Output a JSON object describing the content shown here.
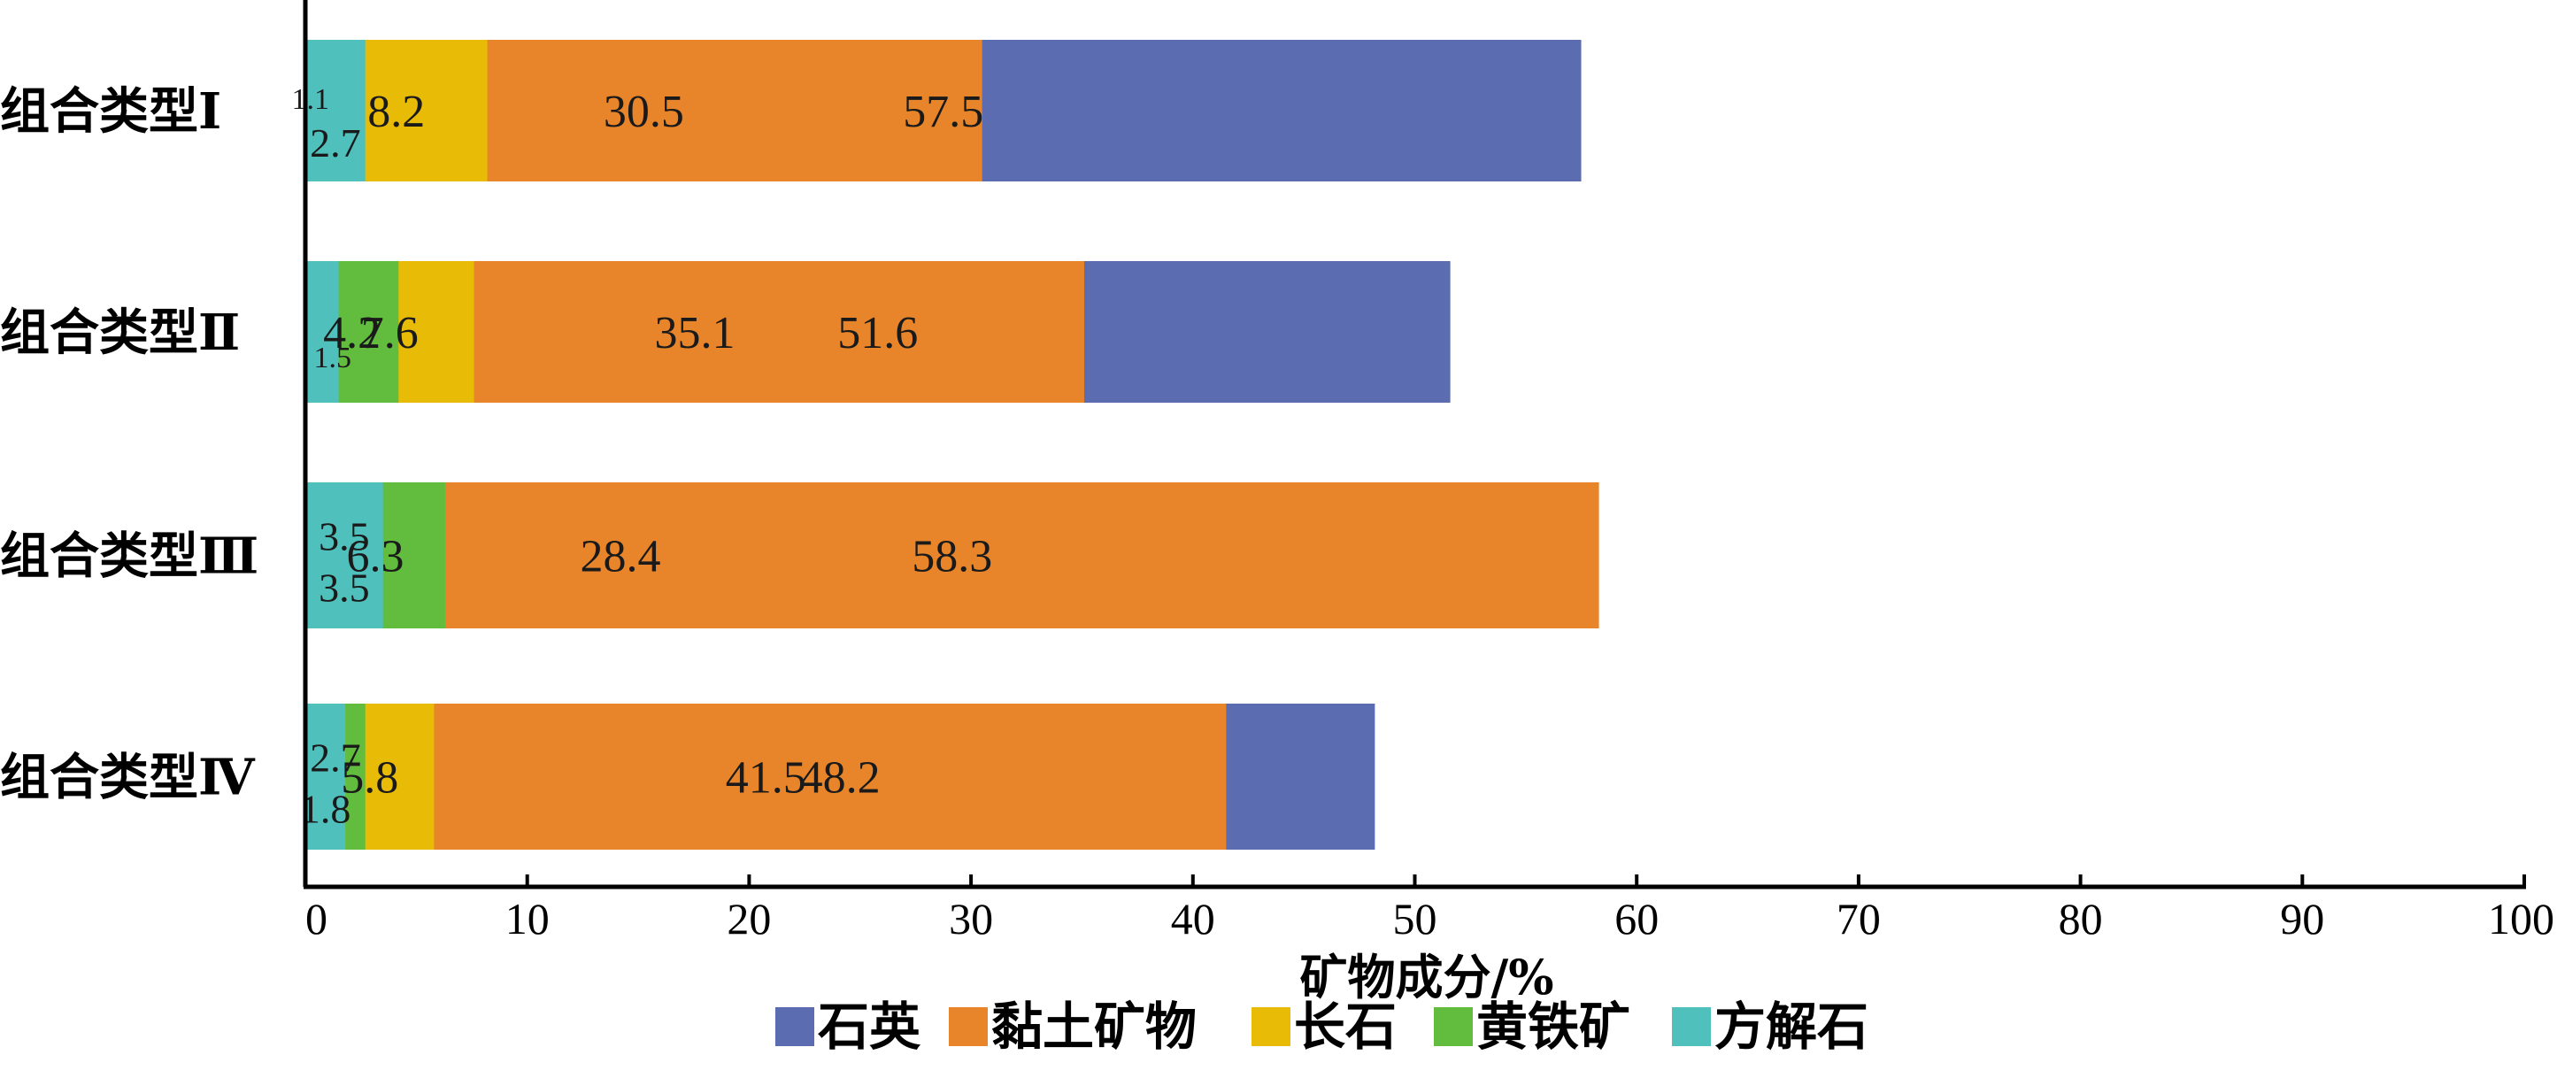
{
  "chart_data": {
    "type": "bar",
    "orientation": "horizontal",
    "stacked": true,
    "title": "",
    "xlabel": "矿物成分/%",
    "ylabel": "",
    "xlim": [
      0,
      100
    ],
    "xticks": [
      0,
      10,
      20,
      30,
      40,
      50,
      60,
      70,
      80,
      90,
      100
    ],
    "categories": [
      "组合类型Ⅰ",
      "组合类型Ⅱ",
      "组合类型Ⅲ",
      "组合类型Ⅳ"
    ],
    "series": [
      {
        "name": "石英",
        "color": "#5b6db0",
        "values": [
          57.5,
          51.6,
          28.4,
          48.2
        ],
        "labels": [
          "57.5",
          "51.6",
          "28.4",
          "48.2"
        ]
      },
      {
        "name": "黏土矿物",
        "color": "#e8852a",
        "values": [
          30.5,
          35.1,
          58.3,
          41.5
        ],
        "labels": [
          "30.5",
          "35.1",
          "58.3",
          "41.5"
        ]
      },
      {
        "name": "长石",
        "color": "#e8bb07",
        "values": [
          8.2,
          7.6,
          3.5,
          5.8
        ],
        "labels": [
          "8.2",
          "7.6",
          "3.5",
          "5.8"
        ]
      },
      {
        "name": "黄铁矿",
        "color": "#62bd3e",
        "values": [
          1.1,
          4.2,
          6.3,
          2.7
        ],
        "labels": [
          "1.1",
          "4.2",
          "6.3",
          "2.7"
        ]
      },
      {
        "name": "方解石",
        "color": "#4fc0bc",
        "values": [
          2.7,
          1.5,
          3.5,
          1.8
        ],
        "labels": [
          "2.7",
          "1.5",
          "3.5",
          "1.8"
        ]
      }
    ],
    "grid": false,
    "legend_position": "bottom"
  }
}
